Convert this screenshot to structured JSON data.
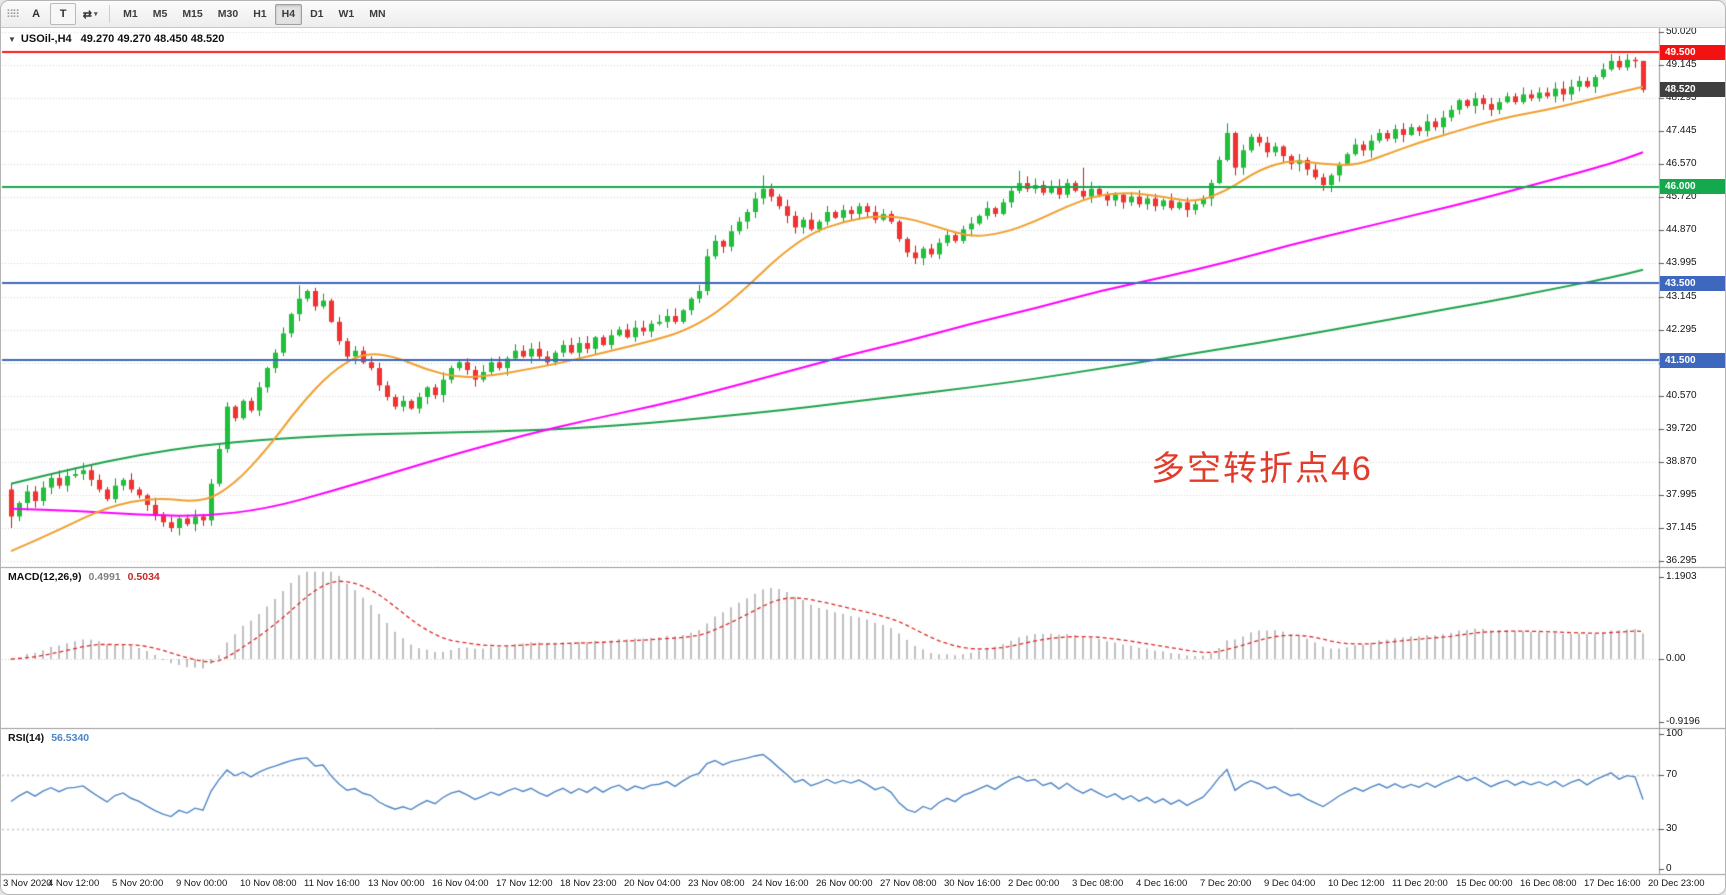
{
  "toolbar": {
    "drag_handle_glyph": "⠿⠿",
    "tools": [
      {
        "name": "annotation-tool",
        "label": "A"
      },
      {
        "name": "text-tool",
        "label": "T",
        "boxed": true
      },
      {
        "name": "cursor-mode-tool",
        "glyph": "⇄",
        "caret": "▾"
      }
    ],
    "timeframes": [
      "M1",
      "M5",
      "M15",
      "M30",
      "H1",
      "H4",
      "D1",
      "W1",
      "MN"
    ],
    "active_timeframe": "H4"
  },
  "chart": {
    "title": {
      "collapse_glyph": "▼",
      "symbol": "USOil-,H4",
      "ohlc": "49.270 49.270 48.450 48.520"
    },
    "annotation": {
      "text": "多空转折点46",
      "color": "#e23b2b"
    },
    "current_price": {
      "label": "48.520",
      "value": 48.52,
      "badge": "#3f3f3f"
    },
    "hlines": [
      {
        "price": 49.5,
        "label": "49.500",
        "color": "#ff1414",
        "badge": "#f21212"
      },
      {
        "price": 46.0,
        "label": "46.000",
        "color": "#13a94c",
        "badge": "#13a94c"
      },
      {
        "price": 43.5,
        "label": "43.500",
        "color": "#3e68be",
        "badge": "#3e68be"
      },
      {
        "price": 41.5,
        "label": "41.500",
        "color": "#3e68be",
        "badge": "#3e68be"
      }
    ],
    "price_axis": {
      "labels": [
        "50.020",
        "49.145",
        "48.295",
        "47.445",
        "46.570",
        "45.720",
        "44.870",
        "43.995",
        "43.145",
        "42.295",
        "41.420",
        "40.570",
        "39.720",
        "38.870",
        "37.995",
        "37.145",
        "36.295"
      ]
    },
    "time_axis": {
      "labels": [
        "3 Nov 2020",
        "4 Nov 12:00",
        "5 Nov 20:00",
        "9 Nov 00:00",
        "10 Nov 08:00",
        "11 Nov 16:00",
        "13 Nov 00:00",
        "16 Nov 04:00",
        "17 Nov 12:00",
        "18 Nov 23:00",
        "20 Nov 04:00",
        "23 Nov 08:00",
        "24 Nov 16:00",
        "26 Nov 00:00",
        "27 Nov 08:00",
        "30 Nov 16:00",
        "2 Dec 00:00",
        "3 Dec 08:00",
        "4 Dec 16:00",
        "7 Dec 20:00",
        "9 Dec 04:00",
        "10 Dec 12:00",
        "11 Dec 20:00",
        "15 Dec 00:00",
        "16 Dec 08:00",
        "17 Dec 16:00",
        "20 Dec 23:00"
      ]
    },
    "colors": {
      "up": "#1fbf3a",
      "up_stroke": "#0e9e2a",
      "down": "#f23131",
      "down_stroke": "#cf1b1b",
      "grid": "#d6d6d6",
      "ma_fast": "#f0a030",
      "ma_mid": "#ff00ff",
      "ma_slow": "#1fa34d",
      "macd_hist": "#c0c0c0",
      "macd_signal": "#dd2c2c",
      "rsi_line": "#4f86c6",
      "separator": "#9a9a9a"
    },
    "chart_data": {
      "type": "candlestick",
      "symbol": "USOil-",
      "timeframe": "H4",
      "title": "USOil-,H4 49.270 49.270 48.450 48.520",
      "price_axis_range": [
        36.295,
        50.02
      ],
      "ohlc_current": {
        "open": 49.27,
        "high": 49.27,
        "low": 48.45,
        "close": 48.52
      },
      "first_open": 38.15,
      "closes": [
        37.45,
        37.8,
        38.1,
        37.85,
        38.2,
        38.45,
        38.25,
        38.5,
        38.55,
        38.65,
        38.4,
        38.15,
        37.9,
        38.25,
        38.4,
        38.15,
        38.0,
        37.75,
        37.5,
        37.3,
        37.15,
        37.4,
        37.25,
        37.45,
        37.35,
        38.3,
        39.2,
        40.3,
        40.0,
        40.45,
        40.2,
        40.8,
        41.3,
        41.7,
        42.2,
        42.7,
        43.1,
        43.3,
        42.9,
        43.05,
        42.5,
        42.0,
        41.6,
        41.75,
        41.45,
        41.3,
        40.85,
        40.55,
        40.3,
        40.45,
        40.25,
        40.55,
        40.8,
        40.6,
        41.0,
        41.3,
        41.45,
        41.25,
        41.0,
        41.2,
        41.45,
        41.3,
        41.55,
        41.75,
        41.6,
        41.8,
        41.6,
        41.45,
        41.7,
        41.9,
        41.7,
        41.95,
        41.8,
        42.1,
        41.9,
        42.15,
        42.3,
        42.1,
        42.35,
        42.25,
        42.45,
        42.5,
        42.65,
        42.5,
        42.8,
        43.1,
        43.3,
        44.2,
        44.6,
        44.45,
        44.85,
        45.1,
        45.35,
        45.7,
        45.95,
        45.75,
        45.5,
        45.25,
        44.95,
        45.15,
        44.9,
        45.1,
        45.35,
        45.2,
        45.4,
        45.3,
        45.5,
        45.35,
        45.15,
        45.3,
        45.1,
        44.65,
        44.3,
        44.15,
        44.4,
        44.25,
        44.55,
        44.75,
        44.6,
        44.9,
        45.05,
        45.25,
        45.45,
        45.3,
        45.6,
        45.9,
        46.1,
        45.95,
        46.05,
        45.85,
        46.0,
        45.8,
        46.1,
        45.9,
        45.75,
        45.95,
        45.8,
        45.65,
        45.8,
        45.6,
        45.75,
        45.55,
        45.7,
        45.5,
        45.65,
        45.45,
        45.6,
        45.4,
        45.55,
        45.7,
        46.1,
        46.7,
        47.4,
        46.5,
        46.95,
        47.3,
        47.15,
        46.9,
        47.05,
        46.8,
        46.6,
        46.7,
        46.45,
        46.25,
        46.05,
        46.3,
        46.6,
        46.85,
        47.1,
        46.95,
        47.2,
        47.4,
        47.25,
        47.5,
        47.35,
        47.55,
        47.45,
        47.7,
        47.55,
        47.8,
        48.0,
        48.25,
        48.1,
        48.3,
        48.15,
        48.0,
        48.2,
        48.35,
        48.2,
        48.4,
        48.3,
        48.45,
        48.35,
        48.55,
        48.4,
        48.6,
        48.75,
        48.6,
        48.85,
        49.05,
        49.27,
        49.1,
        49.3,
        49.27,
        48.52
      ],
      "wick_high_overrides": {
        "36": 43.45,
        "94": 46.3,
        "126": 46.42,
        "134": 46.5,
        "152": 47.65,
        "200": 49.45,
        "202": 49.45
      },
      "wick_low_overrides": {
        "0": 37.15,
        "20": 37.05,
        "113": 44.0,
        "153": 46.3,
        "164": 45.9
      },
      "horizontal_levels": [
        49.5,
        46.0,
        43.5,
        41.5
      ],
      "moving_averages": [
        {
          "name": "ma-fast-orange",
          "points": [
            [
              0,
              36.55
            ],
            [
              6,
              37.1
            ],
            [
              12,
              37.7
            ],
            [
              18,
              37.95
            ],
            [
              24,
              37.8
            ],
            [
              28,
              38.3
            ],
            [
              32,
              39.2
            ],
            [
              36,
              40.3
            ],
            [
              40,
              41.2
            ],
            [
              44,
              41.7
            ],
            [
              48,
              41.6
            ],
            [
              52,
              41.25
            ],
            [
              56,
              41.05
            ],
            [
              60,
              41.1
            ],
            [
              64,
              41.25
            ],
            [
              68,
              41.4
            ],
            [
              72,
              41.6
            ],
            [
              76,
              41.8
            ],
            [
              80,
              42.0
            ],
            [
              84,
              42.25
            ],
            [
              88,
              42.7
            ],
            [
              92,
              43.4
            ],
            [
              96,
              44.2
            ],
            [
              100,
              44.8
            ],
            [
              104,
              45.1
            ],
            [
              108,
              45.25
            ],
            [
              112,
              45.2
            ],
            [
              116,
              44.95
            ],
            [
              120,
              44.7
            ],
            [
              124,
              44.8
            ],
            [
              128,
              45.1
            ],
            [
              132,
              45.5
            ],
            [
              136,
              45.8
            ],
            [
              140,
              45.85
            ],
            [
              144,
              45.75
            ],
            [
              148,
              45.6
            ],
            [
              152,
              45.9
            ],
            [
              156,
              46.45
            ],
            [
              160,
              46.7
            ],
            [
              164,
              46.6
            ],
            [
              168,
              46.55
            ],
            [
              172,
              46.85
            ],
            [
              176,
              47.15
            ],
            [
              180,
              47.4
            ],
            [
              184,
              47.65
            ],
            [
              188,
              47.85
            ],
            [
              192,
              48.0
            ],
            [
              196,
              48.2
            ],
            [
              200,
              48.4
            ],
            [
              204,
              48.6
            ]
          ]
        },
        {
          "name": "ma-mid-magenta",
          "points": [
            [
              0,
              37.65
            ],
            [
              8,
              37.6
            ],
            [
              16,
              37.5
            ],
            [
              24,
              37.45
            ],
            [
              32,
              37.65
            ],
            [
              40,
              38.1
            ],
            [
              48,
              38.6
            ],
            [
              56,
              39.1
            ],
            [
              64,
              39.55
            ],
            [
              72,
              39.95
            ],
            [
              80,
              40.3
            ],
            [
              88,
              40.7
            ],
            [
              96,
              41.15
            ],
            [
              104,
              41.6
            ],
            [
              112,
              42.0
            ],
            [
              120,
              42.45
            ],
            [
              128,
              42.85
            ],
            [
              136,
              43.3
            ],
            [
              144,
              43.65
            ],
            [
              152,
              44.05
            ],
            [
              160,
              44.5
            ],
            [
              168,
              44.9
            ],
            [
              176,
              45.3
            ],
            [
              184,
              45.7
            ],
            [
              192,
              46.15
            ],
            [
              200,
              46.6
            ],
            [
              204,
              46.9
            ]
          ]
        },
        {
          "name": "ma-slow-green",
          "points": [
            [
              0,
              38.3
            ],
            [
              8,
              38.7
            ],
            [
              16,
              39.05
            ],
            [
              24,
              39.3
            ],
            [
              32,
              39.45
            ],
            [
              40,
              39.55
            ],
            [
              48,
              39.6
            ],
            [
              56,
              39.63
            ],
            [
              64,
              39.68
            ],
            [
              72,
              39.75
            ],
            [
              80,
              39.88
            ],
            [
              88,
              40.03
            ],
            [
              96,
              40.2
            ],
            [
              104,
              40.4
            ],
            [
              112,
              40.6
            ],
            [
              120,
              40.8
            ],
            [
              128,
              41.02
            ],
            [
              136,
              41.28
            ],
            [
              144,
              41.55
            ],
            [
              152,
              41.82
            ],
            [
              160,
              42.1
            ],
            [
              168,
              42.4
            ],
            [
              176,
              42.7
            ],
            [
              184,
              43.0
            ],
            [
              192,
              43.32
            ],
            [
              200,
              43.65
            ],
            [
              204,
              43.85
            ]
          ]
        }
      ]
    }
  },
  "macd": {
    "label": "MACD(12,26,9)",
    "value_main": "0.4991",
    "value_signal": "0.5034",
    "axis": [
      "1.1903",
      "0.00",
      "-0.9196"
    ],
    "axis_values": [
      1.1903,
      0.0,
      -0.9196
    ],
    "params": {
      "fast": 12,
      "slow": 26,
      "signal": 9
    }
  },
  "rsi": {
    "label": "RSI(14)",
    "value": "56.5340",
    "period": 14,
    "axis": [
      "100",
      "70",
      "30",
      "0"
    ],
    "axis_values": [
      100,
      70,
      30,
      0
    ],
    "levels": [
      70,
      30
    ]
  }
}
